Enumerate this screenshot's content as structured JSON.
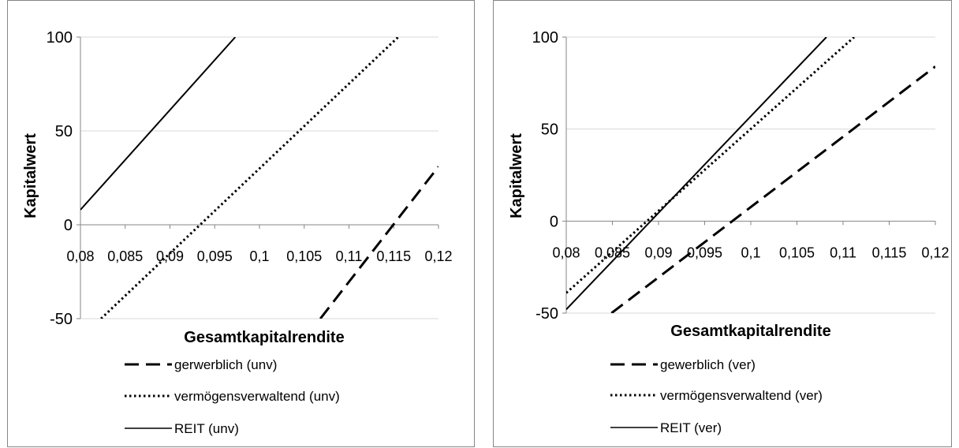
{
  "chart_data": [
    {
      "type": "line",
      "xlabel": "Gesamtkapitalrendite",
      "ylabel": "Kapitalwert",
      "xlim": [
        0.08,
        0.12
      ],
      "ylim": [
        -50,
        100
      ],
      "x_tick_labels": [
        "0,08",
        "0,085",
        "0,09",
        "0,095",
        "0,1",
        "0,105",
        "0,11",
        "0,115",
        "0,12"
      ],
      "y_tick_labels": [
        "100",
        "50",
        "0",
        "-50"
      ],
      "y_ticks": [
        100,
        50,
        0,
        -50
      ],
      "grid": "horizontal",
      "legend_position": "bottom",
      "series": [
        {
          "name": "gerwerblich (unv)",
          "style": "dashed",
          "x": [
            0.1068,
            0.12
          ],
          "y": [
            -50,
            31
          ]
        },
        {
          "name": "vermögensverwaltend (unv)",
          "style": "dotted",
          "x": [
            0.0823,
            0.1155
          ],
          "y": [
            -50,
            100
          ]
        },
        {
          "name": "REIT (unv)",
          "style": "solid",
          "x": [
            0.08,
            0.0973
          ],
          "y": [
            8,
            100
          ]
        }
      ]
    },
    {
      "type": "line",
      "xlabel": "Gesamtkapitalrendite",
      "ylabel": "Kapitalwert",
      "xlim": [
        0.08,
        0.12
      ],
      "ylim": [
        -50,
        100
      ],
      "x_tick_labels": [
        "0,08",
        "0,085",
        "0,09",
        "0,095",
        "0,1",
        "0,105",
        "0,11",
        "0,115",
        "0,12"
      ],
      "y_tick_labels": [
        "100",
        "50",
        "0",
        "-50"
      ],
      "y_ticks": [
        100,
        50,
        0,
        -50
      ],
      "grid": "horizontal",
      "legend_position": "bottom",
      "series": [
        {
          "name": "gewerblich (ver)",
          "style": "dashed",
          "x": [
            0.0849,
            0.12
          ],
          "y": [
            -50,
            84
          ]
        },
        {
          "name": "vermögensverwaltend (ver)",
          "style": "dotted",
          "x": [
            0.08,
            0.1112
          ],
          "y": [
            -39,
            100
          ]
        },
        {
          "name": "REIT (ver)",
          "style": "solid",
          "x": [
            0.08,
            0.1082
          ],
          "y": [
            -48,
            100
          ]
        }
      ]
    }
  ]
}
